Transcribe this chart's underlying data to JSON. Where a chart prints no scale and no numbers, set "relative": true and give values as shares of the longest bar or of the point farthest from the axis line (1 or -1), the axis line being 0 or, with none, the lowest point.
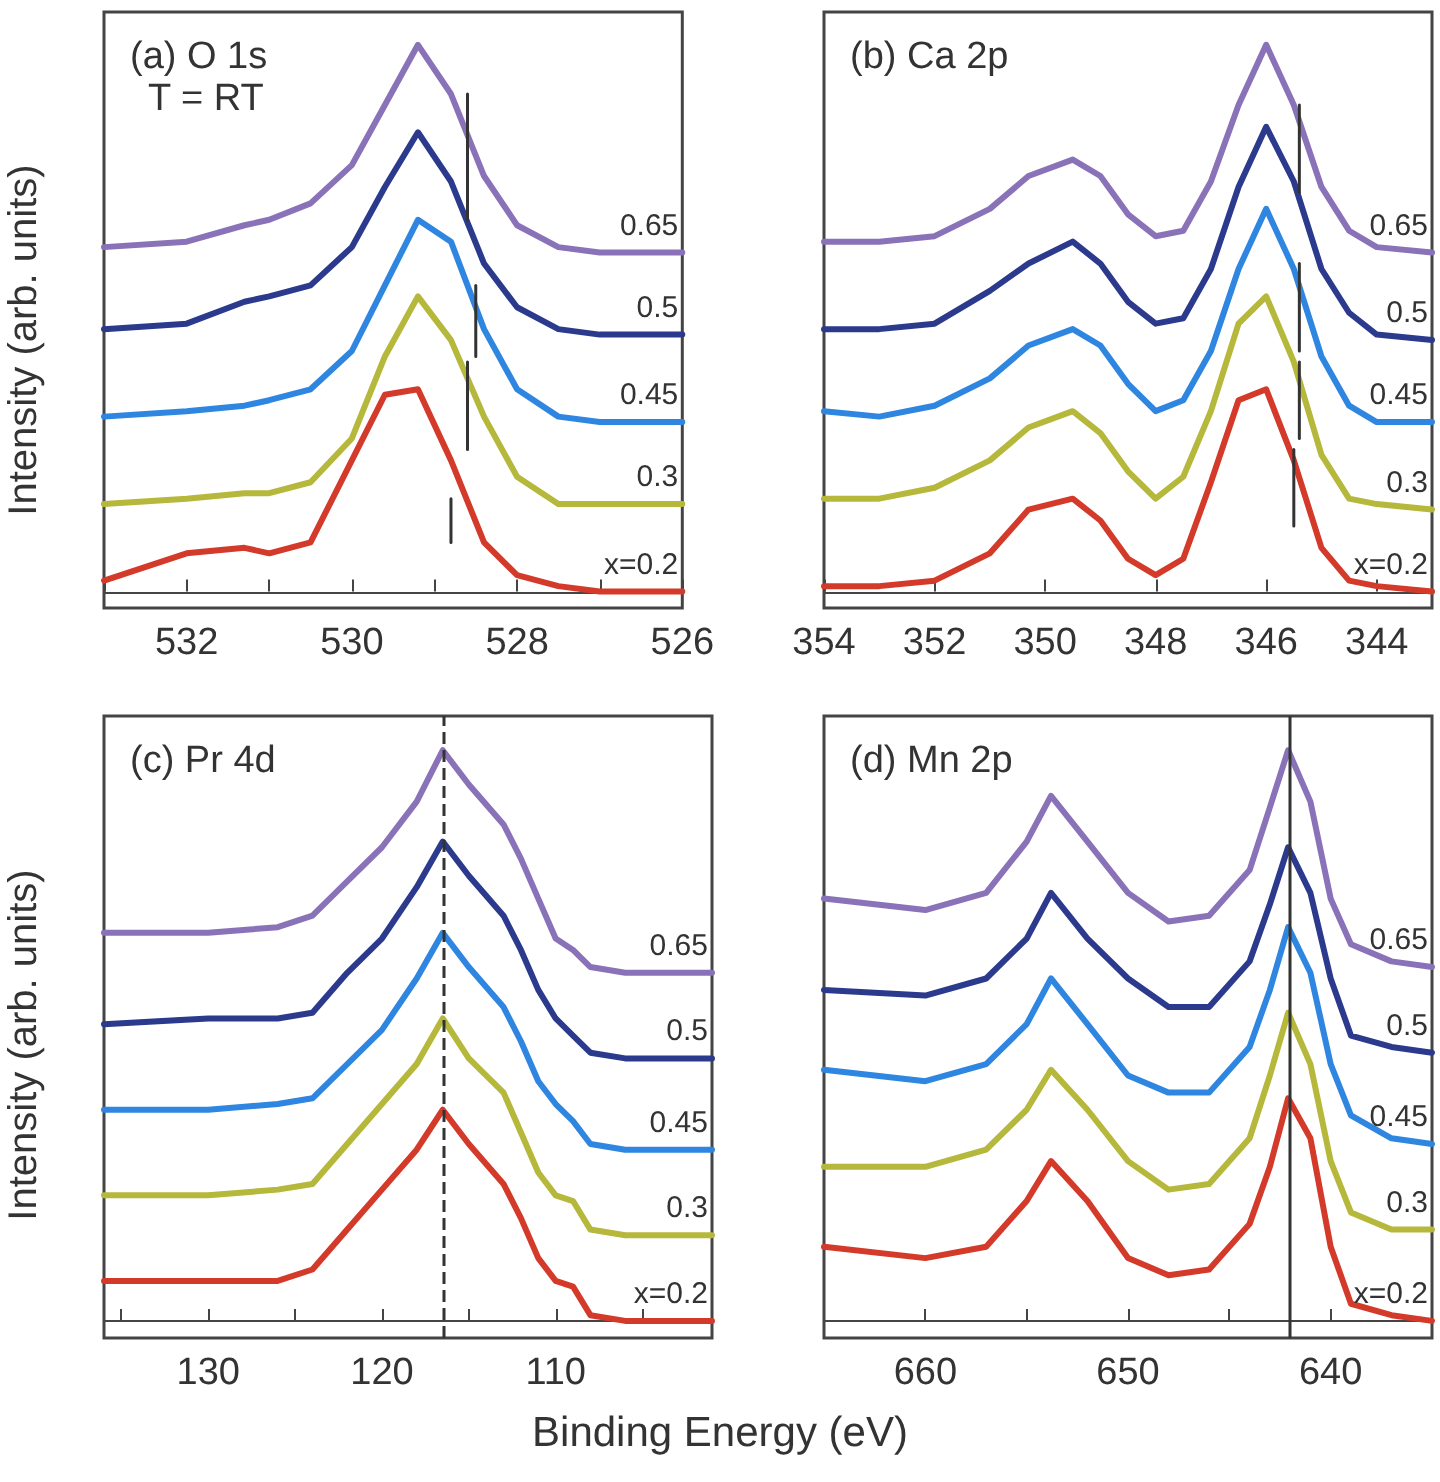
{
  "chart_data": [
    {
      "type": "line",
      "title": "(a) O 1s",
      "annotations": [
        "T = RT"
      ],
      "ylabel": "Intensity (arb. units)",
      "relative": true,
      "marker": "none",
      "xlim": [
        533,
        526
      ],
      "xticks": [
        {
          "value": 533,
          "label": null
        },
        532,
        {
          "value": 531,
          "label": null
        },
        530,
        {
          "value": 529,
          "label": null
        },
        528,
        {
          "value": 527,
          "label": null
        },
        526
      ],
      "x": [
        533,
        532,
        531.3,
        531,
        530.5,
        530,
        529.6,
        529.2,
        528.8,
        528.4,
        528,
        527.5,
        527,
        526
      ],
      "series": [
        {
          "name": "0.65",
          "color": "#8a72b8",
          "values": [
            0.63,
            0.64,
            0.67,
            0.68,
            0.71,
            0.78,
            0.89,
            1.0,
            0.91,
            0.76,
            0.67,
            0.63,
            0.62,
            0.62
          ]
        },
        {
          "name": "0.5",
          "color": "#2b3a8c",
          "values": [
            0.48,
            0.49,
            0.53,
            0.54,
            0.56,
            0.63,
            0.74,
            0.84,
            0.75,
            0.6,
            0.52,
            0.48,
            0.47,
            0.47
          ]
        },
        {
          "name": "0.45",
          "color": "#2f86e0",
          "values": [
            0.32,
            0.33,
            0.34,
            0.35,
            0.37,
            0.44,
            0.56,
            0.68,
            0.64,
            0.48,
            0.37,
            0.32,
            0.31,
            0.31
          ]
        },
        {
          "name": "0.3",
          "color": "#b5b83a",
          "values": [
            0.16,
            0.17,
            0.18,
            0.18,
            0.2,
            0.28,
            0.43,
            0.54,
            0.46,
            0.32,
            0.21,
            0.16,
            0.16,
            0.16
          ]
        },
        {
          "name": "x=0.2",
          "color": "#d43a2a",
          "values": [
            0.02,
            0.07,
            0.08,
            0.07,
            0.09,
            0.24,
            0.36,
            0.37,
            0.24,
            0.09,
            0.03,
            0.01,
            0,
            0
          ]
        },
        {
          "color": "#333333",
          "x": [
            528.6,
            528.6
          ],
          "values": [
            0.91,
            0.68
          ]
        },
        {
          "color": "#333333",
          "x": [
            528.5,
            528.5
          ],
          "values": [
            0.56,
            0.43
          ]
        },
        {
          "color": "#333333",
          "x": [
            528.6,
            528.6
          ],
          "values": [
            0.42,
            0.26
          ]
        },
        {
          "color": "#333333",
          "x": [
            528.8,
            528.8
          ],
          "values": [
            0.17,
            0.09
          ]
        }
      ]
    },
    {
      "type": "line",
      "title": "(b) Ca 2p",
      "relative": true,
      "marker": "none",
      "xlim": [
        354,
        343
      ],
      "xticks": [
        354,
        352,
        350,
        348,
        346,
        344
      ],
      "x": [
        354,
        353,
        352,
        351,
        350.3,
        349.5,
        349,
        348.5,
        348,
        347.5,
        347,
        346.5,
        346,
        345.5,
        345,
        344.5,
        344,
        343
      ],
      "series": [
        {
          "name": "0.65",
          "color": "#8a72b8",
          "values": [
            0.64,
            0.64,
            0.65,
            0.7,
            0.76,
            0.79,
            0.76,
            0.69,
            0.65,
            0.66,
            0.75,
            0.89,
            1.0,
            0.89,
            0.74,
            0.66,
            0.63,
            0.62
          ]
        },
        {
          "name": "0.5",
          "color": "#2b3a8c",
          "values": [
            0.48,
            0.48,
            0.49,
            0.55,
            0.6,
            0.64,
            0.6,
            0.53,
            0.49,
            0.5,
            0.59,
            0.74,
            0.85,
            0.75,
            0.59,
            0.51,
            0.47,
            0.46
          ]
        },
        {
          "name": "0.45",
          "color": "#2f86e0",
          "values": [
            0.33,
            0.32,
            0.34,
            0.39,
            0.45,
            0.48,
            0.45,
            0.38,
            0.33,
            0.35,
            0.44,
            0.59,
            0.7,
            0.59,
            0.43,
            0.34,
            0.31,
            0.31
          ]
        },
        {
          "name": "0.3",
          "color": "#b5b83a",
          "values": [
            0.17,
            0.17,
            0.19,
            0.24,
            0.3,
            0.33,
            0.29,
            0.22,
            0.17,
            0.21,
            0.33,
            0.49,
            0.54,
            0.42,
            0.25,
            0.17,
            0.16,
            0.15
          ]
        },
        {
          "name": "x=0.2",
          "color": "#d43a2a",
          "values": [
            0.01,
            0.01,
            0.02,
            0.07,
            0.15,
            0.17,
            0.13,
            0.06,
            0.03,
            0.06,
            0.2,
            0.35,
            0.37,
            0.24,
            0.08,
            0.02,
            0.01,
            0
          ]
        },
        {
          "color": "#333333",
          "x": [
            345.4,
            345.4
          ],
          "values": [
            0.89,
            0.73
          ]
        },
        {
          "color": "#333333",
          "x": [
            345.4,
            345.4
          ],
          "values": [
            0.6,
            0.44
          ]
        },
        {
          "color": "#333333",
          "x": [
            345.4,
            345.4
          ],
          "values": [
            0.42,
            0.28
          ]
        },
        {
          "color": "#333333",
          "x": [
            345.5,
            345.5
          ],
          "values": [
            0.26,
            0.12
          ]
        }
      ]
    },
    {
      "type": "line",
      "title": "(c) Pr 4d",
      "ylabel": "Intensity (arb. units)",
      "xlabel": "Binding Energy (eV)",
      "relative": true,
      "marker": "none",
      "xlim": [
        136,
        101
      ],
      "xticks": [
        {
          "value": 135,
          "label": null
        },
        130,
        {
          "value": 125,
          "label": null
        },
        120,
        {
          "value": 115,
          "label": null
        },
        110,
        {
          "value": 105,
          "label": null
        }
      ],
      "x": [
        136,
        130,
        126,
        124,
        122,
        120,
        118,
        116.5,
        115,
        113,
        112,
        111,
        110,
        109,
        108,
        106,
        101
      ],
      "series": [
        {
          "name": "0.65",
          "color": "#8a72b8",
          "values": [
            0.68,
            0.68,
            0.69,
            0.71,
            0.77,
            0.83,
            0.91,
            1.0,
            0.94,
            0.87,
            0.81,
            0.74,
            0.67,
            0.65,
            0.62,
            0.61,
            0.61
          ]
        },
        {
          "name": "0.5",
          "color": "#2b3a8c",
          "values": [
            0.52,
            0.53,
            0.53,
            0.54,
            0.61,
            0.67,
            0.76,
            0.84,
            0.78,
            0.71,
            0.65,
            0.58,
            0.53,
            0.5,
            0.47,
            0.46,
            0.46
          ]
        },
        {
          "name": "0.45",
          "color": "#2f86e0",
          "values": [
            0.37,
            0.37,
            0.38,
            0.39,
            0.45,
            0.51,
            0.6,
            0.68,
            0.62,
            0.55,
            0.49,
            0.42,
            0.38,
            0.35,
            0.31,
            0.3,
            0.3
          ]
        },
        {
          "name": "0.3",
          "color": "#b5b83a",
          "values": [
            0.22,
            0.22,
            0.23,
            0.24,
            0.31,
            0.38,
            0.45,
            0.53,
            0.46,
            0.4,
            0.33,
            0.26,
            0.22,
            0.21,
            0.16,
            0.15,
            0.15
          ]
        },
        {
          "name": "x=0.2",
          "color": "#d43a2a",
          "values": [
            0.07,
            0.07,
            0.07,
            0.09,
            0.16,
            0.23,
            0.3,
            0.37,
            0.31,
            0.24,
            0.18,
            0.11,
            0.07,
            0.06,
            0.01,
            0,
            0
          ]
        }
      ],
      "ref_lines": [
        {
          "axis": "x",
          "value": 116.5,
          "color": "#333333",
          "line_style": "dashed"
        }
      ]
    },
    {
      "type": "line",
      "title": "(d) Mn 2p",
      "relative": true,
      "marker": "none",
      "xlim": [
        665,
        635
      ],
      "xticks": [
        660,
        {
          "value": 655,
          "label": null
        },
        650,
        {
          "value": 645,
          "label": null
        },
        640
      ],
      "x": [
        665,
        660,
        657,
        655,
        653.8,
        652,
        650,
        648,
        646,
        644,
        643,
        642.1,
        641,
        640,
        639,
        637,
        635
      ],
      "series": [
        {
          "name": "0.65",
          "color": "#8a72b8",
          "values": [
            0.74,
            0.72,
            0.75,
            0.84,
            0.92,
            0.84,
            0.75,
            0.7,
            0.71,
            0.79,
            0.9,
            1.0,
            0.91,
            0.74,
            0.66,
            0.63,
            0.62
          ]
        },
        {
          "name": "0.5",
          "color": "#2b3a8c",
          "values": [
            0.58,
            0.57,
            0.6,
            0.67,
            0.75,
            0.67,
            0.6,
            0.55,
            0.55,
            0.63,
            0.73,
            0.83,
            0.75,
            0.6,
            0.5,
            0.48,
            0.47
          ]
        },
        {
          "name": "0.45",
          "color": "#2f86e0",
          "values": [
            0.44,
            0.42,
            0.45,
            0.52,
            0.6,
            0.52,
            0.43,
            0.4,
            0.4,
            0.48,
            0.58,
            0.69,
            0.61,
            0.45,
            0.36,
            0.32,
            0.31
          ]
        },
        {
          "name": "0.3",
          "color": "#b5b83a",
          "values": [
            0.27,
            0.27,
            0.3,
            0.37,
            0.44,
            0.37,
            0.28,
            0.23,
            0.24,
            0.32,
            0.43,
            0.54,
            0.45,
            0.28,
            0.19,
            0.16,
            0.16
          ]
        },
        {
          "name": "x=0.2",
          "color": "#d43a2a",
          "values": [
            0.13,
            0.11,
            0.13,
            0.21,
            0.28,
            0.21,
            0.11,
            0.08,
            0.09,
            0.17,
            0.27,
            0.39,
            0.32,
            0.13,
            0.03,
            0.01,
            0
          ]
        }
      ],
      "ref_lines": [
        {
          "axis": "x",
          "value": 642,
          "color": "#333333",
          "line_style": "solid"
        }
      ]
    }
  ]
}
